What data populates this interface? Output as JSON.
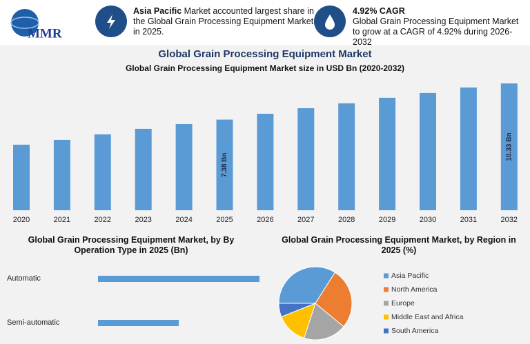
{
  "header": {
    "logo": "MMR",
    "callouts": [
      {
        "bold": "Asia Pacific",
        "text": "Market accounted largest share in the Global Grain Processing Equipment Market in 2025."
      },
      {
        "bold": "4.92% CAGR",
        "text": "Global Grain Processing Equipment Market to grow at a CAGR of 4.92% during 2026-2032"
      }
    ]
  },
  "chart_data": [
    {
      "type": "bar",
      "title": "Global Grain Processing Equipment Market",
      "subtitle": "Global Grain Processing Equipment Market size in USD Bn (2020-2032)",
      "categories": [
        "2020",
        "2021",
        "2022",
        "2023",
        "2024",
        "2025",
        "2026",
        "2027",
        "2028",
        "2029",
        "2030",
        "2031",
        "2032"
      ],
      "values": [
        5.34,
        5.73,
        6.18,
        6.63,
        7.02,
        7.38,
        7.86,
        8.31,
        8.71,
        9.16,
        9.55,
        10.0,
        10.33
      ],
      "value_labels": [
        null,
        null,
        null,
        null,
        null,
        "7.38 Bn",
        null,
        null,
        null,
        null,
        null,
        null,
        "10.33 Bn"
      ],
      "color": "#5b9bd5"
    },
    {
      "type": "hbar",
      "title": "Global Grain Processing Equipment Market, by By Operation Type in 2025 (Bn)",
      "categories": [
        "Automatic",
        "Semi-automatic"
      ],
      "values": [
        4.92,
        2.46
      ],
      "color": "#5b9bd5"
    },
    {
      "type": "pie",
      "title": "Global Grain Processing Equipment Market, by Region in 2025 (%)",
      "categories": [
        "Asia Pacific",
        "North America",
        "Europe",
        "Middle East and Africa",
        "South America"
      ],
      "values": [
        34,
        27,
        19,
        14,
        6
      ],
      "colors": [
        "#5b9bd5",
        "#ed7d31",
        "#a5a5a5",
        "#ffc000",
        "#4472c4"
      ]
    }
  ]
}
